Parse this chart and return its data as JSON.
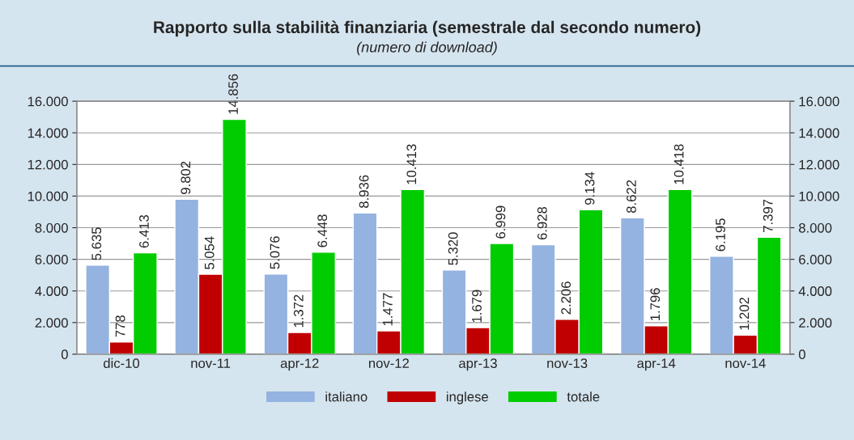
{
  "chart_data": {
    "type": "bar",
    "title": "Rapporto sulla stabilità finanziaria (semestrale dal secondo numero)",
    "subtitle": "(numero di download)",
    "categories": [
      "dic-10",
      "nov-11",
      "apr-12",
      "nov-12",
      "apr-13",
      "nov-13",
      "apr-14",
      "nov-14"
    ],
    "series": [
      {
        "name": "italiano",
        "color": "#95b3e0",
        "values": [
          5635,
          9802,
          5076,
          8936,
          5320,
          6928,
          8622,
          6195
        ],
        "value_labels": [
          "5.635",
          "9.802",
          "5.076",
          "8.936",
          "5.320",
          "6.928",
          "8.622",
          "6.195"
        ]
      },
      {
        "name": "inglese",
        "color": "#c00000",
        "values": [
          778,
          5054,
          1372,
          1477,
          1679,
          2206,
          1796,
          1202
        ],
        "value_labels": [
          "778",
          "5.054",
          "1.372",
          "1.477",
          "1.679",
          "2.206",
          "1.796",
          "1.202"
        ]
      },
      {
        "name": "totale",
        "color": "#00cc00",
        "values": [
          6413,
          14856,
          6448,
          10413,
          6999,
          9134,
          10418,
          7397
        ],
        "value_labels": [
          "6.413",
          "14.856",
          "6.448",
          "10.413",
          "6.999",
          "9.134",
          "10.418",
          "7.397"
        ]
      }
    ],
    "ylim": [
      0,
      16000
    ],
    "yticks": [
      {
        "value": 0,
        "label": "0"
      },
      {
        "value": 2000,
        "label": "2.000"
      },
      {
        "value": 4000,
        "label": "4.000"
      },
      {
        "value": 6000,
        "label": "6.000"
      },
      {
        "value": 8000,
        "label": "8.000"
      },
      {
        "value": 10000,
        "label": "10.000"
      },
      {
        "value": 12000,
        "label": "12.000"
      },
      {
        "value": 14000,
        "label": "14.000"
      },
      {
        "value": 16000,
        "label": "16.000"
      }
    ],
    "y2lim": [
      0,
      16000
    ],
    "y2ticks": [
      {
        "value": 0,
        "label": "0"
      },
      {
        "value": 2000,
        "label": "2.000"
      },
      {
        "value": 4000,
        "label": "4.000"
      },
      {
        "value": 6000,
        "label": "6.000"
      },
      {
        "value": 8000,
        "label": "8.000"
      },
      {
        "value": 10000,
        "label": "10.000"
      },
      {
        "value": 12000,
        "label": "12.000"
      },
      {
        "value": 14000,
        "label": "14.000"
      },
      {
        "value": 16000,
        "label": "16.000"
      }
    ],
    "grid": "y",
    "legend": "bottom"
  }
}
